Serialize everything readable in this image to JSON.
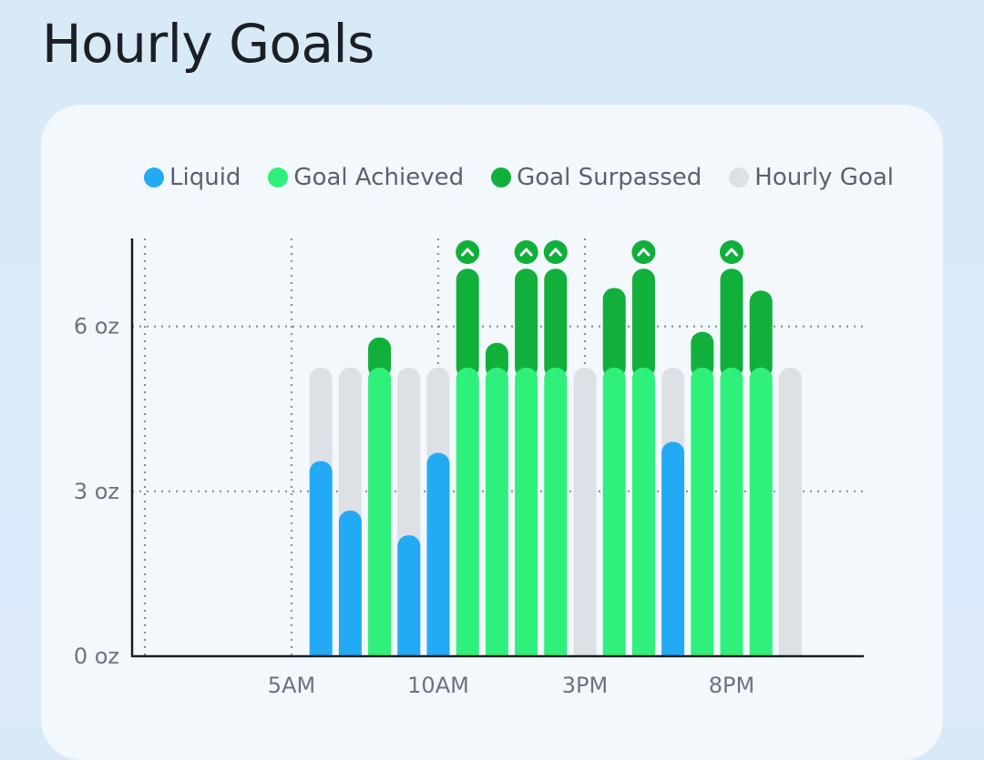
{
  "header": {
    "title": "Hourly Goals"
  },
  "legend": [
    {
      "label": "Liquid",
      "color": "#22aaf5"
    },
    {
      "label": "Goal Achieved",
      "color": "#2ef07a"
    },
    {
      "label": "Goal Surpassed",
      "color": "#10b03a"
    },
    {
      "label": "Hourly Goal",
      "color": "#dde1e5"
    }
  ],
  "chart_data": {
    "type": "bar",
    "title": "Hourly Goals",
    "unit": "oz",
    "ylim": [
      0,
      7.6
    ],
    "yticks": [
      {
        "value": 0,
        "label": "0 oz"
      },
      {
        "value": 3,
        "label": "3 oz"
      },
      {
        "value": 6,
        "label": "6 oz"
      }
    ],
    "xticks": [
      {
        "hour": 5,
        "label": "5AM"
      },
      {
        "hour": 10,
        "label": "10AM"
      },
      {
        "hour": 15,
        "label": "3PM"
      },
      {
        "hour": 20,
        "label": "8PM"
      }
    ],
    "x_range_hours": [
      0,
      25
    ],
    "vertical_gridlines_hours": [
      0,
      5,
      10,
      15
    ],
    "hourly_goal": 5.25,
    "grid": true,
    "legend_position": "top",
    "surpassed_icon": "chevron-up-icon",
    "hours": [
      6,
      7,
      8,
      9,
      10,
      11,
      12,
      13,
      14,
      15,
      16,
      17,
      18,
      19,
      20,
      21,
      22
    ],
    "series": [
      {
        "name": "Liquid",
        "values": [
          3.55,
          2.65,
          0,
          2.2,
          3.7,
          0,
          0,
          0,
          0,
          0,
          0,
          0,
          3.9,
          0,
          0,
          0,
          0
        ]
      },
      {
        "name": "Goal Achieved",
        "values": [
          0,
          0,
          5.25,
          0,
          0,
          5.25,
          5.25,
          5.25,
          5.25,
          0,
          5.25,
          5.25,
          0,
          5.25,
          5.25,
          5.25,
          0
        ]
      },
      {
        "name": "Goal Surpassed",
        "values": [
          0,
          0,
          0.55,
          0,
          0,
          1.8,
          0.45,
          1.8,
          1.8,
          0,
          1.45,
          1.8,
          0,
          0.65,
          1.8,
          1.4,
          0
        ]
      },
      {
        "name": "Hourly Goal",
        "values": [
          5.25,
          5.25,
          5.25,
          5.25,
          5.25,
          5.25,
          5.25,
          5.25,
          5.25,
          5.25,
          5.25,
          5.25,
          5.25,
          5.25,
          5.25,
          5.25,
          5.25
        ]
      }
    ],
    "chevron_hours": [
      11,
      13,
      14,
      17,
      20
    ]
  }
}
